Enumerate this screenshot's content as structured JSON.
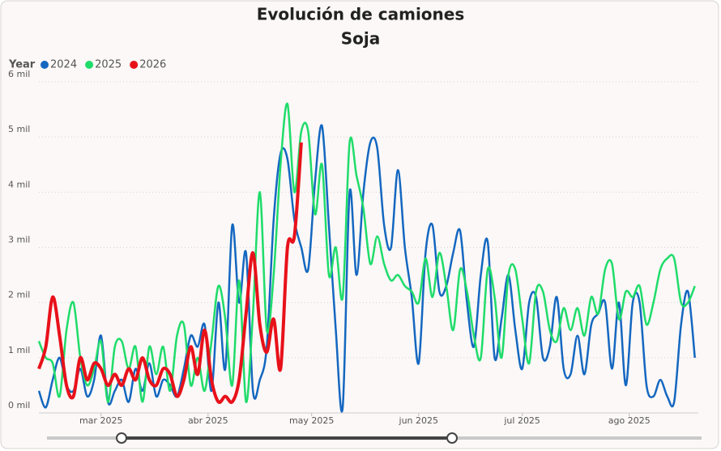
{
  "chart_data": {
    "type": "line",
    "title": "Evolución de camiones",
    "subtitle": "Soja",
    "legend_title": "Year",
    "x": [
      10,
      12,
      14,
      16,
      18,
      20,
      22,
      24,
      26,
      28,
      30,
      32,
      34,
      36,
      38,
      40,
      42,
      44,
      46,
      48,
      50,
      52,
      54,
      56,
      58,
      60,
      62,
      64,
      66,
      68,
      70,
      72,
      74,
      76,
      78,
      80,
      82,
      84,
      86,
      88,
      90,
      92,
      94,
      96,
      98,
      100,
      102,
      104,
      106,
      108,
      110,
      112,
      114,
      116,
      118,
      120,
      122,
      124,
      126,
      128,
      130,
      132,
      134,
      136,
      138,
      140,
      142,
      144,
      146,
      148,
      150,
      152,
      154,
      156,
      158,
      160,
      162,
      164,
      166,
      168,
      170,
      172,
      174,
      176,
      178,
      180,
      182,
      184,
      186,
      188,
      190,
      192,
      194,
      196,
      198,
      200
    ],
    "xlim": [
      10,
      201
    ],
    "xticks": [
      {
        "value": 28,
        "label": "mar 2025"
      },
      {
        "value": 59,
        "label": "abr 2025"
      },
      {
        "value": 89,
        "label": "may 2025"
      },
      {
        "value": 120,
        "label": "jun 2025"
      },
      {
        "value": 150,
        "label": "jul 2025"
      },
      {
        "value": 181,
        "label": "ago 2025"
      }
    ],
    "ylim": [
      0,
      6
    ],
    "yticks": [
      {
        "value": 0,
        "label": "0 mil"
      },
      {
        "value": 1,
        "label": "1 mil"
      },
      {
        "value": 2,
        "label": "2 mil"
      },
      {
        "value": 3,
        "label": "3 mil"
      },
      {
        "value": 4,
        "label": "4 mil"
      },
      {
        "value": 5,
        "label": "5 mil"
      },
      {
        "value": 6,
        "label": "6 mil"
      }
    ],
    "grid": true,
    "series": [
      {
        "name": "2024",
        "color": "#1467c0",
        "values": [
          0.4,
          0.1,
          0.6,
          1.0,
          0.5,
          0.4,
          0.8,
          0.3,
          0.6,
          1.4,
          0.2,
          0.4,
          0.6,
          0.2,
          0.8,
          0.4,
          0.9,
          0.3,
          0.6,
          0.5,
          0.3,
          0.8,
          1.4,
          1.2,
          1.6,
          0.4,
          2.0,
          0.8,
          3.4,
          2.0,
          2.9,
          0.4,
          0.6,
          1.2,
          3.5,
          4.7,
          4.6,
          3.5,
          3.0,
          2.6,
          4.2,
          5.2,
          3.4,
          1.5,
          0.1,
          4.0,
          2.5,
          4.0,
          4.9,
          4.8,
          3.4,
          3.0,
          4.4,
          3.0,
          2.1,
          0.9,
          2.9,
          3.4,
          2.2,
          2.3,
          2.9,
          3.3,
          2.0,
          1.2,
          2.5,
          3.1,
          1.0,
          1.7,
          2.5,
          1.5,
          0.8,
          2.0,
          2.1,
          1.0,
          1.2,
          2.1,
          0.8,
          0.7,
          1.4,
          0.7,
          1.6,
          1.8,
          2.0,
          0.8,
          2.0,
          0.5,
          2.0,
          2.0,
          0.5,
          0.3,
          0.6,
          0.3,
          0.2,
          1.6,
          2.2,
          1.0
        ]
      },
      {
        "name": "2025",
        "color": "#1fdc6a",
        "values": [
          1.3,
          1.0,
          0.9,
          0.3,
          1.5,
          2.0,
          1.0,
          0.5,
          0.8,
          1.3,
          0.2,
          1.2,
          1.3,
          0.8,
          1.2,
          0.2,
          1.2,
          0.7,
          1.2,
          0.4,
          1.4,
          1.6,
          0.5,
          1.0,
          0.4,
          1.3,
          2.3,
          1.7,
          0.5,
          2.4,
          0.2,
          1.8,
          4.0,
          1.5,
          2.5,
          4.5,
          5.6,
          4.0,
          5.1,
          5.1,
          3.6,
          4.5,
          2.5,
          3.0,
          2.1,
          4.9,
          4.3,
          3.7,
          2.7,
          3.2,
          2.7,
          2.4,
          2.5,
          2.3,
          2.2,
          2.0,
          2.8,
          2.1,
          2.9,
          2.3,
          1.5,
          2.6,
          2.2,
          1.4,
          1.0,
          2.6,
          2.1,
          1.0,
          2.5,
          2.6,
          1.7,
          0.9,
          2.2,
          2.2,
          1.5,
          1.3,
          1.9,
          1.5,
          1.9,
          1.4,
          2.1,
          1.8,
          2.6,
          2.7,
          1.7,
          2.2,
          2.1,
          2.3,
          1.6,
          2.0,
          2.6,
          2.8,
          2.8,
          2.0,
          2.0,
          2.3
        ]
      },
      {
        "name": "2026",
        "color": "#e8111a",
        "values": [
          0.8,
          1.2,
          2.1,
          1.4,
          0.5,
          0.3,
          1.0,
          0.6,
          0.9,
          0.8,
          0.5,
          0.7,
          0.5,
          0.8,
          0.6,
          1.0,
          0.6,
          0.5,
          0.8,
          0.7,
          0.3,
          0.6,
          1.2,
          0.7,
          1.5,
          0.6,
          0.2,
          0.3,
          0.2,
          0.6,
          1.8,
          2.9,
          1.6,
          1.1,
          1.7,
          0.8,
          3.0,
          3.2,
          4.9,
          null,
          null,
          null,
          null,
          null,
          null,
          null,
          null,
          null,
          null,
          null,
          null,
          null,
          null,
          null,
          null,
          null,
          null,
          null,
          null,
          null,
          null,
          null,
          null,
          null,
          null,
          null,
          null,
          null,
          null,
          null,
          null,
          null,
          null,
          null,
          null,
          null,
          null,
          null,
          null,
          null,
          null,
          null,
          null,
          null,
          null,
          null,
          null,
          null,
          null,
          null,
          null,
          null,
          null,
          null,
          null,
          null
        ]
      }
    ]
  }
}
